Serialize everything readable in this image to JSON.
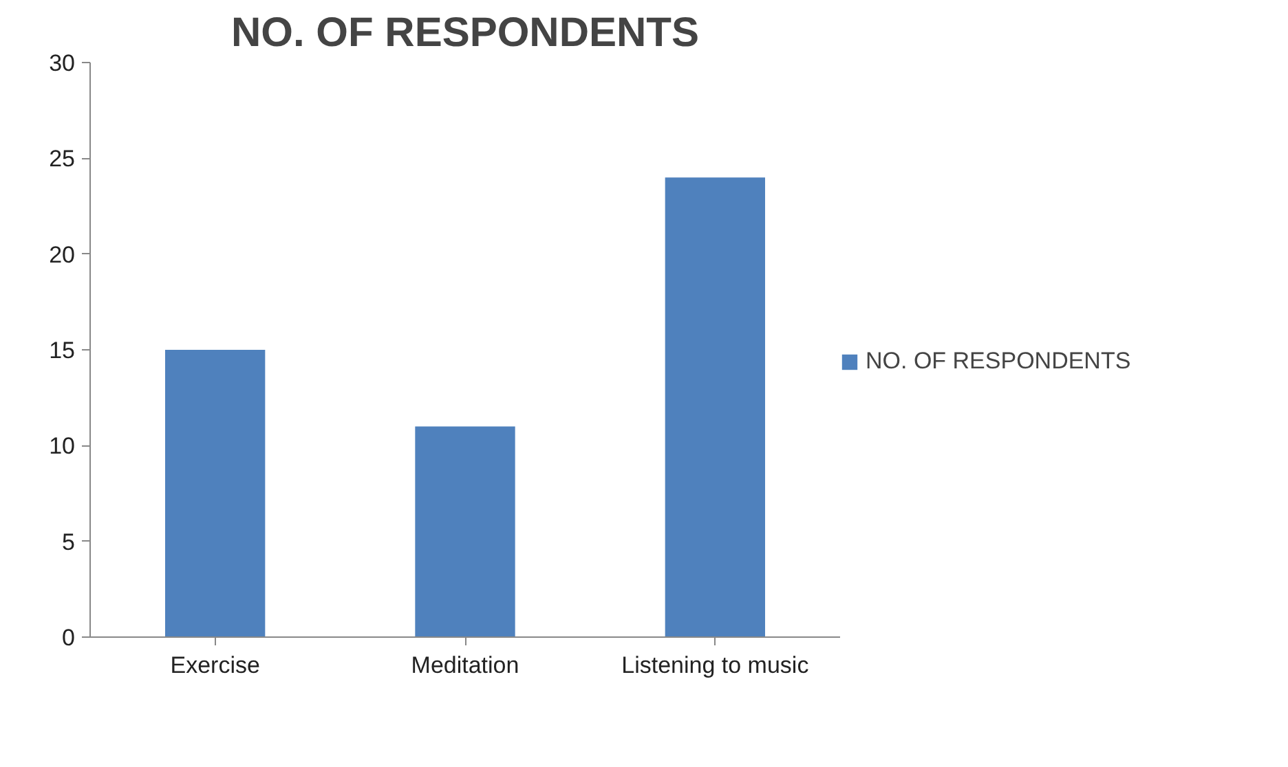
{
  "chart_data": {
    "type": "bar",
    "title": "NO. OF RESPONDENTS",
    "categories": [
      "Exercise",
      "Meditation",
      "Listening to music"
    ],
    "series": [
      {
        "name": "NO. OF RESPONDENTS",
        "color": "#4f81bd",
        "values": [
          15,
          11,
          24
        ]
      }
    ],
    "ylim": [
      0,
      30
    ],
    "yticks": [
      0,
      5,
      10,
      15,
      20,
      25,
      30
    ],
    "grid": false,
    "legend": "right"
  }
}
